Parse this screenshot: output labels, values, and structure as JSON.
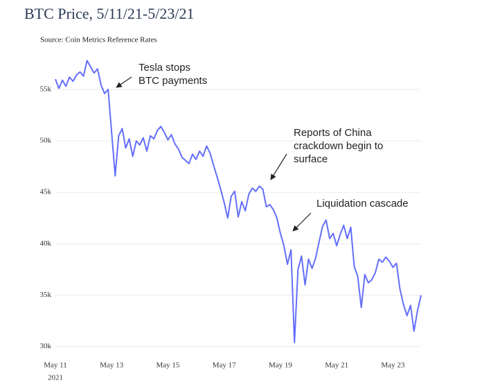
{
  "chart_data": {
    "type": "line",
    "title": "BTC Price, 5/11/21-5/23/21",
    "subtitle": "Source: Coin Metrics Reference Rates",
    "color": "#636efa",
    "grid": true,
    "x": [
      "2021-05-11 00:00",
      "2021-05-11 03:00",
      "2021-05-11 06:00",
      "2021-05-11 09:00",
      "2021-05-11 12:00",
      "2021-05-11 15:00",
      "2021-05-11 18:00",
      "2021-05-11 21:00",
      "2021-05-12 00:00",
      "2021-05-12 03:00",
      "2021-05-12 06:00",
      "2021-05-12 09:00",
      "2021-05-12 12:00",
      "2021-05-12 15:00",
      "2021-05-12 18:00",
      "2021-05-12 21:00",
      "2021-05-13 00:00",
      "2021-05-13 03:00",
      "2021-05-13 06:00",
      "2021-05-13 09:00",
      "2021-05-13 12:00",
      "2021-05-13 15:00",
      "2021-05-13 18:00",
      "2021-05-13 21:00",
      "2021-05-14 00:00",
      "2021-05-14 03:00",
      "2021-05-14 06:00",
      "2021-05-14 09:00",
      "2021-05-14 12:00",
      "2021-05-14 15:00",
      "2021-05-14 18:00",
      "2021-05-14 21:00",
      "2021-05-15 00:00",
      "2021-05-15 03:00",
      "2021-05-15 06:00",
      "2021-05-15 09:00",
      "2021-05-15 12:00",
      "2021-05-15 15:00",
      "2021-05-15 18:00",
      "2021-05-15 21:00",
      "2021-05-16 00:00",
      "2021-05-16 03:00",
      "2021-05-16 06:00",
      "2021-05-16 09:00",
      "2021-05-16 12:00",
      "2021-05-16 15:00",
      "2021-05-16 18:00",
      "2021-05-16 21:00",
      "2021-05-17 00:00",
      "2021-05-17 03:00",
      "2021-05-17 06:00",
      "2021-05-17 09:00",
      "2021-05-17 12:00",
      "2021-05-17 15:00",
      "2021-05-17 18:00",
      "2021-05-17 21:00",
      "2021-05-18 00:00",
      "2021-05-18 03:00",
      "2021-05-18 06:00",
      "2021-05-18 09:00",
      "2021-05-18 12:00",
      "2021-05-18 15:00",
      "2021-05-18 18:00",
      "2021-05-18 21:00",
      "2021-05-19 00:00",
      "2021-05-19 03:00",
      "2021-05-19 06:00",
      "2021-05-19 09:00",
      "2021-05-19 12:00",
      "2021-05-19 15:00",
      "2021-05-19 18:00",
      "2021-05-19 21:00",
      "2021-05-20 00:00",
      "2021-05-20 03:00",
      "2021-05-20 06:00",
      "2021-05-20 09:00",
      "2021-05-20 12:00",
      "2021-05-20 15:00",
      "2021-05-20 18:00",
      "2021-05-20 21:00",
      "2021-05-21 00:00",
      "2021-05-21 03:00",
      "2021-05-21 06:00",
      "2021-05-21 09:00",
      "2021-05-21 12:00",
      "2021-05-21 15:00",
      "2021-05-21 18:00",
      "2021-05-21 21:00",
      "2021-05-22 00:00",
      "2021-05-22 03:00",
      "2021-05-22 06:00",
      "2021-05-22 09:00",
      "2021-05-22 12:00",
      "2021-05-22 15:00",
      "2021-05-22 18:00",
      "2021-05-22 21:00",
      "2021-05-23 00:00",
      "2021-05-23 03:00",
      "2021-05-23 06:00",
      "2021-05-23 09:00",
      "2021-05-23 12:00",
      "2021-05-23 15:00",
      "2021-05-23 18:00",
      "2021-05-23 21:00",
      "2021-05-24 00:00"
    ],
    "values": [
      56000,
      55100,
      55900,
      55300,
      56200,
      55800,
      56400,
      56700,
      56300,
      57800,
      57200,
      56600,
      57000,
      55400,
      54600,
      55000,
      50800,
      46600,
      50500,
      51200,
      49300,
      50200,
      48500,
      50000,
      49600,
      50300,
      49000,
      50500,
      50200,
      51000,
      51400,
      50800,
      50100,
      50600,
      49700,
      49200,
      48400,
      48100,
      47800,
      48700,
      48200,
      49000,
      48500,
      49500,
      48800,
      47600,
      46500,
      45300,
      44000,
      42500,
      44600,
      45100,
      42600,
      44100,
      43200,
      44800,
      45400,
      45100,
      45600,
      45300,
      43600,
      43800,
      43300,
      42500,
      41000,
      39800,
      38000,
      39400,
      30400,
      37500,
      38800,
      36000,
      38500,
      37600,
      38600,
      40200,
      41700,
      42300,
      40500,
      41000,
      39800,
      40900,
      41800,
      40500,
      41600,
      37800,
      36800,
      33800,
      37000,
      36200,
      36500,
      37200,
      38500,
      38200,
      38700,
      38300,
      37700,
      38100,
      35600,
      34100,
      33000,
      34000,
      31500,
      33500,
      35000
    ],
    "xlim": [
      "2021-05-11 00:00",
      "2021-05-24 00:00"
    ],
    "xticks": [
      {
        "value": "2021-05-11 00:00",
        "label": "May 11"
      },
      {
        "value": "2021-05-13 00:00",
        "label": "May 13"
      },
      {
        "value": "2021-05-15 00:00",
        "label": "May 15"
      },
      {
        "value": "2021-05-17 00:00",
        "label": "May 17"
      },
      {
        "value": "2021-05-19 00:00",
        "label": "May 19"
      },
      {
        "value": "2021-05-21 00:00",
        "label": "May 21"
      },
      {
        "value": "2021-05-23 00:00",
        "label": "May 23"
      }
    ],
    "xtick_year": "2021",
    "ylim": [
      29300,
      58300
    ],
    "yticks": [
      {
        "value": 30000,
        "label": "30k"
      },
      {
        "value": 35000,
        "label": "35k"
      },
      {
        "value": 40000,
        "label": "40k"
      },
      {
        "value": 45000,
        "label": "45k"
      },
      {
        "value": 50000,
        "label": "50k"
      },
      {
        "value": 55000,
        "label": "55k"
      }
    ],
    "annotations": [
      {
        "lines": [
          "Tesla stops",
          "BTC payments"
        ]
      },
      {
        "lines": [
          "Reports of China",
          "crackdown begin to",
          "surface"
        ]
      },
      {
        "lines": [
          "Liquidation cascade"
        ]
      }
    ]
  }
}
